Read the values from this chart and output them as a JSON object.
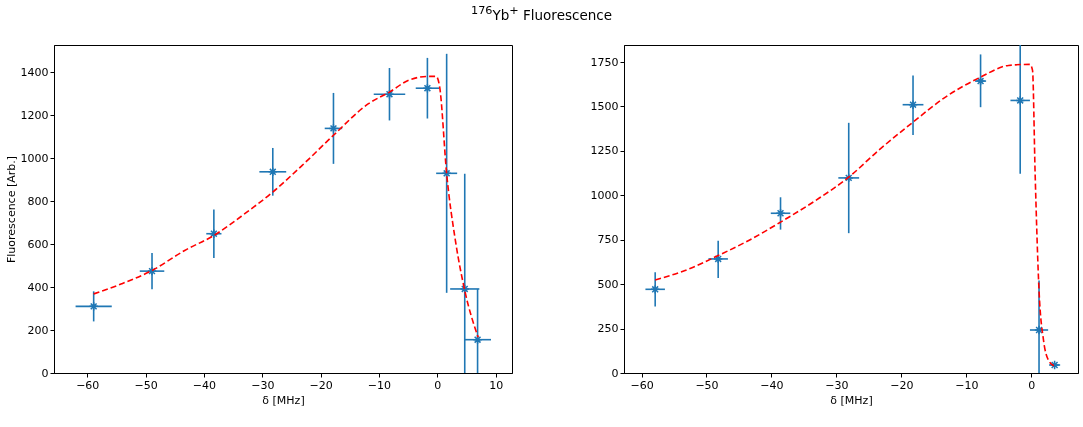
{
  "chart_data": [
    {
      "type": "scatter",
      "title": "$^{176}$Yb$^{+}$ Fluorescence",
      "xlabel": "δ [MHz]",
      "ylabel": "Fluorescence [Arb.]",
      "xlim": [
        -65.7,
        12.8
      ],
      "ylim": [
        0,
        1526
      ],
      "xticks": [
        -60,
        -50,
        -40,
        -30,
        -20,
        -10,
        0,
        10
      ],
      "yticks": [
        0,
        200,
        400,
        600,
        800,
        1000,
        1200,
        1400
      ],
      "grid": false,
      "series": [
        {
          "type": "scatter",
          "color": "#1f77b4",
          "marker": "cross",
          "x": [
            -58.9,
            -48.9,
            -38.3,
            -28.2,
            -17.8,
            -8.2,
            -1.7,
            1.6,
            4.7,
            6.9
          ],
          "values": [
            310,
            474,
            648,
            936,
            1138,
            1297,
            1325,
            929,
            391,
            155
          ],
          "errors": [
            70,
            84,
            113,
            111,
            165,
            122,
            141,
            556,
            [
              0,
              927
            ],
            [
              0,
              391
            ]
          ],
          "xerrors": [
            3.1,
            2.1,
            1.3,
            2.3,
            1.5,
            2.7,
            2.0,
            1.8,
            2.5,
            2.3
          ]
        },
        {
          "type": "line",
          "color": "#ff0000",
          "line_style": "dashed",
          "marker": "none",
          "x": [
            -58.9,
            -54.1,
            -48.9,
            -43.3,
            -38.3,
            -33,
            -28.2,
            -23.2,
            -17.8,
            -11.8,
            -8.2,
            -4.9,
            -1.5,
            -0.2,
            0.4,
            1.6,
            3.1,
            4.7,
            7.0
          ],
          "values": [
            368,
            415,
            477,
            570,
            640,
            741,
            842,
            965,
            1106,
            1253,
            1307,
            1362,
            1380,
            1380,
            1331,
            927,
            616,
            384,
            166
          ]
        }
      ]
    },
    {
      "type": "scatter",
      "xlabel": "δ [MHz]",
      "xlim": [
        -62.7,
        7.2
      ],
      "ylim": [
        0,
        1846
      ],
      "xticks": [
        -60,
        -50,
        -40,
        -30,
        -20,
        -10,
        0
      ],
      "yticks": [
        0,
        250,
        500,
        750,
        1000,
        1250,
        1500,
        1750
      ],
      "grid": false,
      "series": [
        {
          "type": "scatter",
          "color": "#1f77b4",
          "marker": "cross",
          "x": [
            -57.9,
            -48.2,
            -38.6,
            -28.1,
            -18.2,
            -7.8,
            -1.7,
            1.2,
            3.6
          ],
          "values": [
            471,
            642,
            899,
            1098,
            1510,
            1643,
            1534,
            242,
            45
          ],
          "errors": [
            [
              374,
              567
            ],
            [
              535,
              745
            ],
            [
              807,
              989
            ],
            [
              787,
              1408
            ],
            [
              1339,
              1675
            ],
            [
              1496,
              1793
            ],
            [
              1121,
              1846
            ],
            [
              0,
              520
            ],
            null
          ],
          "xerrors": [
            1.5,
            1.5,
            1.5,
            1.6,
            1.6,
            0.85,
            1.5,
            1.4,
            0.85
          ]
        },
        {
          "type": "line",
          "color": "#ff0000",
          "line_style": "dashed",
          "marker": "none",
          "x": [
            -57.9,
            -53.3,
            -48.2,
            -43.5,
            -38.6,
            -33.2,
            -28.1,
            -23.5,
            -18.2,
            -13.2,
            -7.8,
            -3.5,
            -0.2,
            0.2,
            0.6,
            1.2,
            1.9,
            2.7,
            3.5
          ],
          "values": [
            524,
            577,
            661,
            746,
            849,
            971,
            1102,
            1253,
            1412,
            1553,
            1665,
            1731,
            1737,
            1703,
            1121,
            464,
            182,
            69,
            41
          ]
        }
      ]
    }
  ]
}
